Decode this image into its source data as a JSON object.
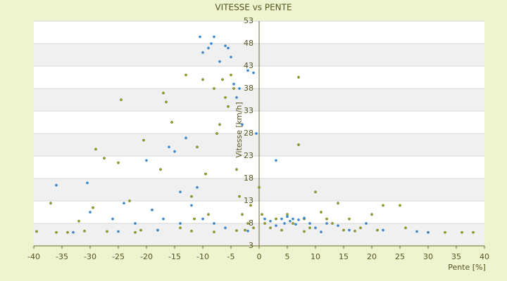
{
  "chart_data": {
    "type": "scatter",
    "title": "VITESSE vs PENTE",
    "x_label": "Pente [%]",
    "y_label": "Vitesse [km/h]",
    "xlim": [
      -40,
      40
    ],
    "xticks": [
      -40,
      -35,
      -30,
      -25,
      -20,
      -15,
      -10,
      -5,
      0,
      5,
      10,
      15,
      20,
      25,
      30,
      35,
      40
    ],
    "ylim": [
      3,
      53
    ],
    "yticks": [
      3,
      8,
      13,
      18,
      23,
      28,
      33,
      38,
      43,
      48,
      53
    ],
    "grid": true,
    "series": [
      {
        "color": "#9aa81e",
        "x": [
          -39.5,
          -37,
          -36,
          -32,
          -31,
          -29.5,
          -29,
          -27.5,
          -25,
          -24.5,
          -23,
          -21,
          -20.5,
          -19,
          -17.5,
          -17,
          -16.5,
          -15.5,
          -14,
          -13,
          -12,
          -11.5,
          -11,
          -10,
          -9.5,
          -9,
          -8,
          -7.5,
          -7,
          -6.5,
          -6,
          -5.5,
          -5,
          -4.5,
          -4,
          -3.5,
          -3,
          -2.5,
          -2,
          -1.5,
          -1,
          0,
          0.5,
          1,
          2,
          3,
          4,
          5,
          6,
          7,
          7,
          8,
          9,
          10,
          11,
          12,
          13,
          14,
          15,
          16,
          18,
          20,
          21,
          22,
          25,
          26,
          30,
          33,
          36,
          38,
          -34,
          -27,
          -22,
          -18,
          -12,
          -8,
          -4,
          8,
          17
        ],
        "values": [
          6.2,
          12.5,
          6,
          8.5,
          6.3,
          11.5,
          24.5,
          22.5,
          21.5,
          35.5,
          13,
          6.5,
          26.5,
          11,
          20,
          37,
          35,
          30.5,
          7,
          41,
          14,
          9,
          25,
          40,
          19,
          10,
          38,
          28,
          30,
          40,
          36,
          34,
          41,
          38,
          20,
          14,
          10,
          6.5,
          8,
          12,
          7,
          16,
          10,
          8,
          7,
          9,
          6.5,
          10,
          8,
          40.5,
          25.5,
          9,
          7,
          15,
          10.5,
          9,
          8,
          12.5,
          6.5,
          9,
          7,
          10,
          6.5,
          12,
          12,
          7,
          6,
          6,
          6,
          6,
          6,
          6.2,
          6,
          6.5,
          6.3,
          6.1,
          6.4,
          6.2,
          6.3
        ]
      },
      {
        "color": "#3a8fd8",
        "x": [
          -36,
          -30.5,
          -30,
          -26,
          -24,
          -22,
          -20,
          -19,
          -17,
          -16,
          -15,
          -14,
          -13,
          -12,
          -11,
          -10.5,
          -10,
          -9,
          -8.5,
          -8,
          -7,
          -6,
          -5.5,
          -5,
          -4.5,
          -4,
          -3.5,
          -3,
          -2,
          -1,
          -0.5,
          -6,
          -8,
          -10,
          -14,
          1,
          2,
          3,
          3,
          4,
          4.5,
          5,
          5.5,
          6,
          6.5,
          7,
          8,
          9,
          10,
          12,
          14,
          16,
          19,
          22,
          28,
          30,
          -33,
          -25,
          -18,
          -2,
          11
        ],
        "values": [
          16.5,
          17,
          10.5,
          9,
          12.5,
          8,
          22,
          11,
          9,
          25,
          24,
          15,
          27,
          12,
          16,
          49.5,
          46,
          47,
          48,
          49.5,
          44,
          47.5,
          47,
          45,
          39,
          36,
          38,
          30,
          42,
          41.5,
          28,
          7,
          8,
          9,
          8,
          9,
          8.5,
          22,
          7.5,
          9,
          8,
          9.5,
          8.5,
          9,
          7.8,
          8.8,
          9.2,
          8,
          7,
          8,
          7.5,
          6.5,
          8,
          6.5,
          6.2,
          6,
          6,
          6.2,
          6.5,
          6.3,
          6.1
        ]
      }
    ]
  }
}
